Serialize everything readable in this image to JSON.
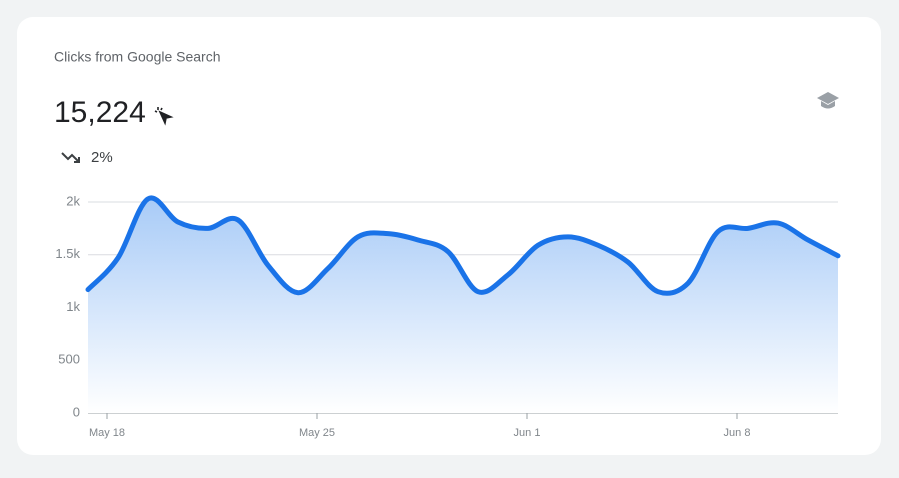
{
  "chart_data": {
    "type": "area",
    "title": "Clicks from Google Search",
    "total": "15,224",
    "change": "2%",
    "categories": [
      null,
      "May 18",
      null,
      null,
      null,
      null,
      null,
      null,
      "May 25",
      null,
      null,
      null,
      null,
      null,
      null,
      "Jun 1",
      null,
      null,
      null,
      null,
      null,
      null,
      "Jun 8",
      null,
      null,
      null
    ],
    "values": [
      1170,
      1470,
      2030,
      1810,
      1750,
      1830,
      1400,
      1140,
      1370,
      1670,
      1700,
      1640,
      1530,
      1150,
      1310,
      1590,
      1670,
      1590,
      1430,
      1150,
      1230,
      1720,
      1750,
      1800,
      1640,
      1490
    ],
    "color": "#1a73e8",
    "ylim": [
      0,
      2000
    ],
    "yticks": [
      0,
      500,
      {
        "value": 1000,
        "label": "1k"
      },
      {
        "value": 1500,
        "label": "1.5k"
      },
      {
        "value": 2000,
        "label": "2k"
      }
    ],
    "grid": true
  }
}
